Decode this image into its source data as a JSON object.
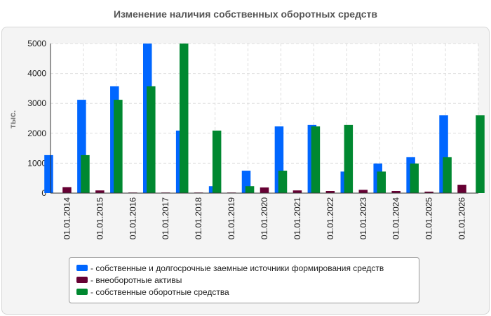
{
  "chart_data": {
    "type": "bar",
    "title": "Изменение наличия собственных оборотных средств",
    "ylabel": "тыс.",
    "xlabel": "",
    "ylim": [
      0,
      5000
    ],
    "yticks": [
      0,
      1000,
      2000,
      3000,
      4000,
      5000
    ],
    "grid": true,
    "legend_position": "bottom",
    "categories": [
      "01.01.2014",
      "01.01.2015",
      "01.01.2016",
      "01.01.2017",
      "01.01.2018",
      "01.01.2019",
      "01.01.2020",
      "01.01.2021",
      "01.01.2022",
      "01.01.2023",
      "01.01.2024",
      "01.01.2025",
      "01.01.2026"
    ],
    "series": [
      {
        "name": "- собственные и долгосрочные заемные источники формирования средств",
        "color": "#0066ff",
        "values": [
          1270,
          3120,
          3570,
          5000,
          2090,
          230,
          750,
          2230,
          2280,
          720,
          990,
          1200,
          2600
        ]
      },
      {
        "name": "- внеоборотные активы",
        "color": "#660033",
        "values": [
          200,
          90,
          20,
          20,
          20,
          20,
          190,
          90,
          70,
          110,
          70,
          50,
          280
        ]
      },
      {
        "name": "- собственные оборотные средства",
        "color": "#008830",
        "values": [
          1270,
          3120,
          3570,
          5000,
          2090,
          230,
          750,
          2230,
          2280,
          720,
          990,
          1200,
          2600
        ]
      }
    ]
  }
}
